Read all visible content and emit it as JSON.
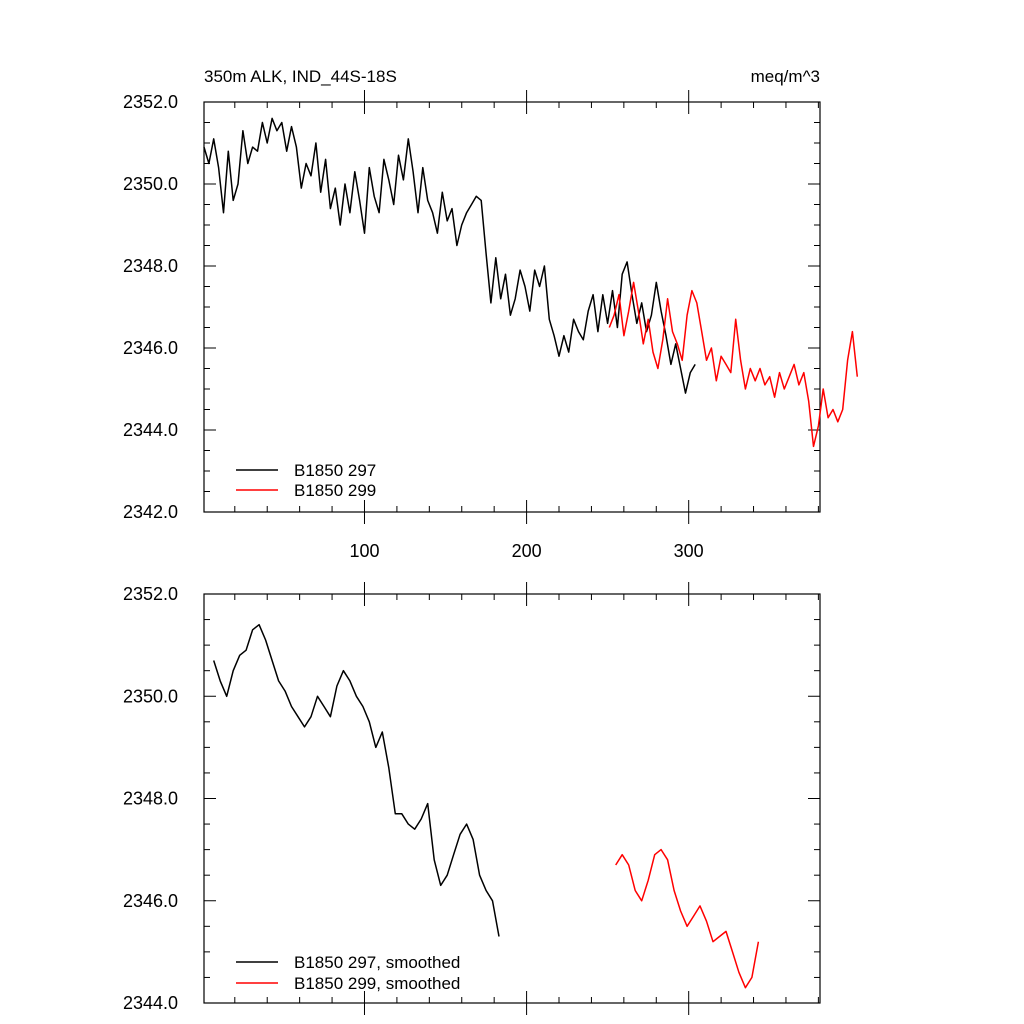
{
  "title_left": "350m ALK, IND_44S-18S",
  "title_right": "meq/m^3",
  "colors": {
    "series_a": "#000000",
    "series_b": "#ff0000"
  },
  "chart_data": [
    {
      "type": "line",
      "title": "350m ALK, IND_44S-18S",
      "units": "meq/m^3",
      "xlim": [
        1,
        381
      ],
      "ylim": [
        2342,
        2352
      ],
      "x_ticks": [
        100,
        200,
        300
      ],
      "y_ticks": [
        "2342.0",
        "2344.0",
        "2346.0",
        "2348.0",
        "2350.0",
        "2352.0"
      ],
      "legend_position": "bottom-left",
      "grid": false,
      "series": [
        {
          "name": "B1850 297",
          "color": "#000000",
          "x_start": 1,
          "x_step": 3,
          "values": [
            2350.9,
            2350.5,
            2351.1,
            2350.4,
            2349.3,
            2350.8,
            2349.6,
            2350.0,
            2351.3,
            2350.5,
            2350.9,
            2350.8,
            2351.5,
            2351.0,
            2351.6,
            2351.3,
            2351.5,
            2350.8,
            2351.4,
            2350.9,
            2349.9,
            2350.5,
            2350.2,
            2351.0,
            2349.8,
            2350.6,
            2349.4,
            2349.9,
            2349.0,
            2350.0,
            2349.3,
            2350.3,
            2349.6,
            2348.8,
            2350.4,
            2349.7,
            2349.3,
            2350.6,
            2350.1,
            2349.5,
            2350.7,
            2350.1,
            2351.1,
            2350.3,
            2349.3,
            2350.4,
            2349.6,
            2349.3,
            2348.8,
            2349.8,
            2349.1,
            2349.4,
            2348.5,
            2349.0,
            2349.3,
            2349.5,
            2349.7,
            2349.6,
            2348.3,
            2347.1,
            2348.2,
            2347.2,
            2347.8,
            2346.8,
            2347.2,
            2347.9,
            2347.5,
            2346.9,
            2347.9,
            2347.5,
            2348.0,
            2346.7,
            2346.3,
            2345.8,
            2346.3,
            2345.9,
            2346.7,
            2346.4,
            2346.2,
            2346.9,
            2347.3,
            2346.4,
            2347.3,
            2346.6,
            2347.4,
            2346.5,
            2347.8,
            2348.1,
            2347.3,
            2346.6,
            2347.1,
            2346.4,
            2346.8,
            2347.6,
            2346.9,
            2346.3,
            2345.6,
            2346.1,
            2345.5,
            2344.9,
            2345.4,
            2345.6
          ]
        },
        {
          "name": "B1850 299",
          "color": "#ff0000",
          "x_start": 251,
          "x_step": 3,
          "values": [
            2346.5,
            2346.8,
            2347.3,
            2346.3,
            2346.9,
            2347.6,
            2346.9,
            2346.1,
            2346.7,
            2345.9,
            2345.5,
            2346.2,
            2347.2,
            2346.4,
            2346.1,
            2345.7,
            2346.8,
            2347.4,
            2347.1,
            2346.4,
            2345.7,
            2346.0,
            2345.2,
            2345.8,
            2345.6,
            2345.4,
            2346.7,
            2345.7,
            2345.0,
            2345.5,
            2345.2,
            2345.5,
            2345.1,
            2345.3,
            2344.8,
            2345.4,
            2345.0,
            2345.3,
            2345.6,
            2345.1,
            2345.4,
            2344.7,
            2343.6,
            2344.1,
            2345.0,
            2344.3,
            2344.5,
            2344.2,
            2344.5,
            2345.7,
            2346.4,
            2345.3
          ]
        }
      ]
    },
    {
      "type": "line",
      "xlim": [
        1,
        381
      ],
      "ylim": [
        2344,
        2352
      ],
      "x_ticks": [
        100,
        200,
        300
      ],
      "y_ticks": [
        "2344.0",
        "2346.0",
        "2348.0",
        "2350.0",
        "2352.0"
      ],
      "legend_position": "bottom-left",
      "grid": false,
      "series": [
        {
          "name": "B1850 297, smoothed",
          "color": "#000000",
          "x_start": 7,
          "x_step": 4,
          "values": [
            2350.7,
            2350.3,
            2350.0,
            2350.5,
            2350.8,
            2350.9,
            2351.3,
            2351.4,
            2351.1,
            2350.7,
            2350.3,
            2350.1,
            2349.8,
            2349.6,
            2349.4,
            2349.6,
            2350.0,
            2349.8,
            2349.6,
            2350.2,
            2350.5,
            2350.3,
            2350.0,
            2349.8,
            2349.5,
            2349.0,
            2349.3,
            2348.6,
            2347.7,
            2347.7,
            2347.5,
            2347.4,
            2347.6,
            2347.9,
            2346.8,
            2346.3,
            2346.5,
            2346.9,
            2347.3,
            2347.5,
            2347.2,
            2346.5,
            2346.2,
            2346.0,
            2345.3
          ]
        },
        {
          "name": "B1850 299, smoothed",
          "color": "#ff0000",
          "x_start": 255,
          "x_step": 4,
          "values": [
            2346.7,
            2346.9,
            2346.7,
            2346.2,
            2346.0,
            2346.4,
            2346.9,
            2347.0,
            2346.8,
            2346.2,
            2345.8,
            2345.5,
            2345.7,
            2345.9,
            2345.6,
            2345.2,
            2345.3,
            2345.4,
            2345.0,
            2344.6,
            2344.3,
            2344.5,
            2345.2
          ]
        }
      ]
    }
  ]
}
